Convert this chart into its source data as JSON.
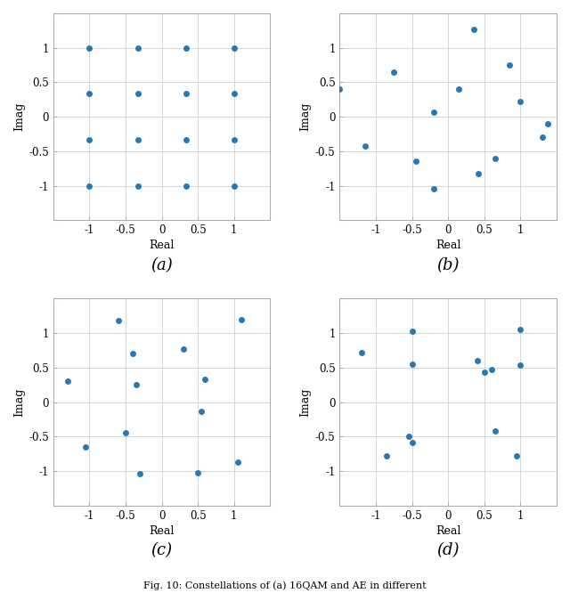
{
  "subplot_a": {
    "x": [
      -1,
      -1,
      -1,
      -1,
      -0.333,
      -0.333,
      -0.333,
      -0.333,
      0.333,
      0.333,
      0.333,
      0.333,
      1,
      1,
      1,
      1
    ],
    "y": [
      1,
      0.333,
      -0.333,
      -1,
      1,
      0.333,
      -0.333,
      -1,
      1,
      0.333,
      -0.333,
      -1,
      1,
      0.333,
      -0.333,
      -1
    ],
    "label": "(a)"
  },
  "subplot_b": {
    "x": [
      -1.5,
      -1.15,
      -0.75,
      -0.45,
      -0.2,
      -0.2,
      0.15,
      0.35,
      0.42,
      0.65,
      0.85,
      1.0,
      1.3,
      1.38
    ],
    "y": [
      0.4,
      -0.42,
      0.65,
      -0.65,
      0.07,
      -1.04,
      0.4,
      1.27,
      -0.82,
      -0.6,
      0.75,
      0.22,
      -0.3,
      -0.1
    ],
    "label": "(b)"
  },
  "subplot_c": {
    "x": [
      -1.3,
      -1.05,
      -0.6,
      -0.5,
      -0.4,
      -0.35,
      -0.3,
      0.3,
      0.5,
      0.55,
      0.6,
      1.05,
      1.1
    ],
    "y": [
      0.3,
      -0.65,
      1.18,
      -0.45,
      0.7,
      0.25,
      -1.04,
      0.77,
      -1.03,
      -0.13,
      0.33,
      -0.87,
      1.2
    ],
    "label": "(c)"
  },
  "subplot_d": {
    "x": [
      -1.2,
      -0.85,
      -0.55,
      -0.5,
      -0.5,
      -0.5,
      0.4,
      0.5,
      0.6,
      0.65,
      0.95,
      1.0,
      1.0
    ],
    "y": [
      0.72,
      -0.78,
      -0.49,
      1.03,
      0.55,
      -0.58,
      0.6,
      0.44,
      0.47,
      -0.42,
      -0.78,
      1.06,
      0.54
    ],
    "label": "(d)"
  },
  "dot_color": "#2878b5",
  "dot_size": 25,
  "grid_color": "#d0d0d0",
  "xlim": [
    -1.5,
    1.5
  ],
  "ylim": [
    -1.5,
    1.5
  ],
  "xticks": [
    -1.5,
    -1,
    -0.5,
    0,
    0.5,
    1,
    1.5
  ],
  "yticks": [
    -1.5,
    -1,
    -0.5,
    0,
    0.5,
    1,
    1.5
  ],
  "xticklabels": [
    "",
    "-1",
    "-0.5",
    "0",
    "0.5",
    "1",
    ""
  ],
  "yticklabels": [
    "",
    "-1",
    "-0.5",
    "0",
    "0.5",
    "1",
    ""
  ],
  "xlabel": "Real",
  "ylabel": "Imag",
  "label_fontsize": 9,
  "tick_fontsize": 8.5,
  "sublabel_fontsize": 13
}
